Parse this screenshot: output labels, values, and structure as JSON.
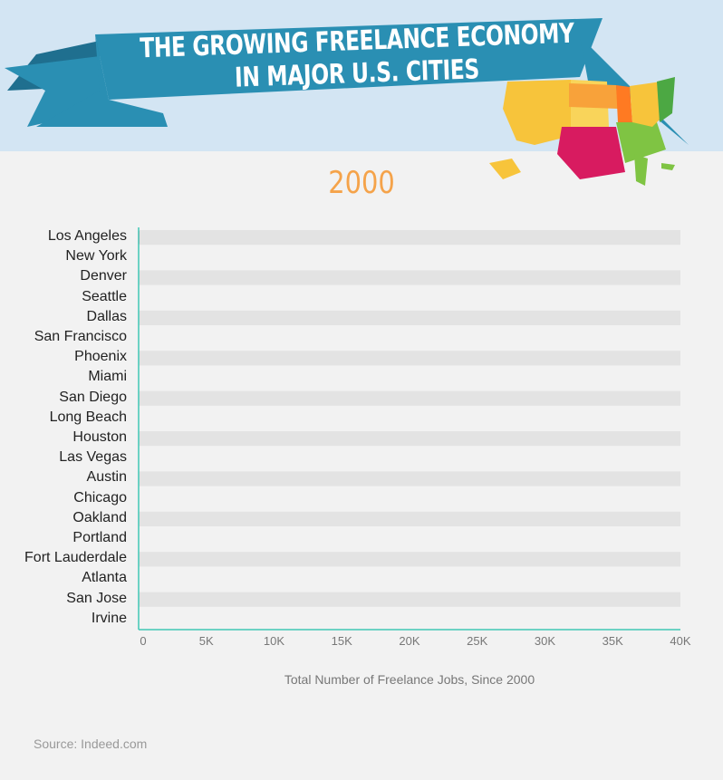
{
  "header": {
    "title_line1": "THE GROWING FREELANCE ECONOMY",
    "title_line2": "IN MAJOR U.S. CITIES",
    "banner_color": "#2a8fb3",
    "background_color": "#d3e5f3"
  },
  "year": "2000",
  "chart_data": {
    "type": "bar",
    "orientation": "horizontal",
    "categories": [
      "Los Angeles",
      "New York",
      "Denver",
      "Seattle",
      "Dallas",
      "San Francisco",
      "Phoenix",
      "Miami",
      "San Diego",
      "Long Beach",
      "Houston",
      "Las Vegas",
      "Austin",
      "Chicago",
      "Oakland",
      "Portland",
      "Fort Lauderdale",
      "Atlanta",
      "San Jose",
      "Irvine"
    ],
    "values": [
      50,
      0,
      0,
      0,
      0,
      0,
      0,
      0,
      0,
      0,
      0,
      0,
      0,
      0,
      0,
      0,
      0,
      0,
      0,
      0
    ],
    "xlabel": "Total Number of Freelance Jobs, Since 2000",
    "ylabel": "",
    "xlim": [
      0,
      40000
    ],
    "ticks": [
      "0",
      "5K",
      "10K",
      "15K",
      "20K",
      "25K",
      "30K",
      "35K",
      "40K"
    ],
    "grid": false,
    "axis_color": "#3fc7b4",
    "bar_color": "#e9407b",
    "row_stripe_color": "#e3e3e3"
  },
  "source": "Source: Indeed.com"
}
